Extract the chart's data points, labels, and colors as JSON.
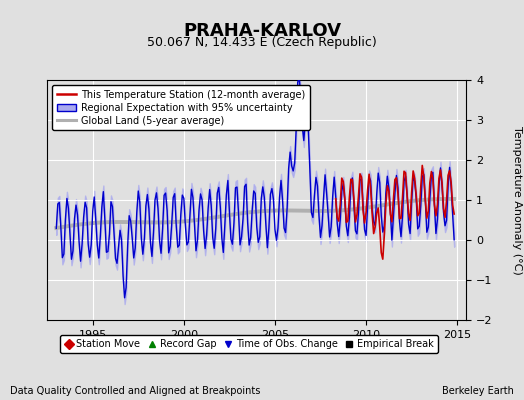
{
  "title": "PRAHA-KARLOV",
  "subtitle": "50.067 N, 14.433 E (Czech Republic)",
  "ylabel": "Temperature Anomaly (°C)",
  "xlim": [
    1992.5,
    2015.5
  ],
  "ylim": [
    -2,
    4
  ],
  "yticks": [
    -2,
    -1,
    0,
    1,
    2,
    3,
    4
  ],
  "xticks": [
    1995,
    2000,
    2005,
    2010,
    2015
  ],
  "background_color": "#e0e0e0",
  "plot_bg_color": "#e0e0e0",
  "footnote_left": "Data Quality Controlled and Aligned at Breakpoints",
  "footnote_right": "Berkeley Earth",
  "legend1_items": [
    "This Temperature Station (12-month average)",
    "Regional Expectation with 95% uncertainty",
    "Global Land (5-year average)"
  ],
  "legend2_items": [
    "Station Move",
    "Record Gap",
    "Time of Obs. Change",
    "Empirical Break"
  ],
  "red_line_color": "#cc0000",
  "blue_line_color": "#0000cc",
  "blue_fill_color": "#aaaaee",
  "gray_line_color": "#b0b0b0",
  "title_fontsize": 13,
  "subtitle_fontsize": 9,
  "axis_fontsize": 8,
  "tick_fontsize": 8
}
